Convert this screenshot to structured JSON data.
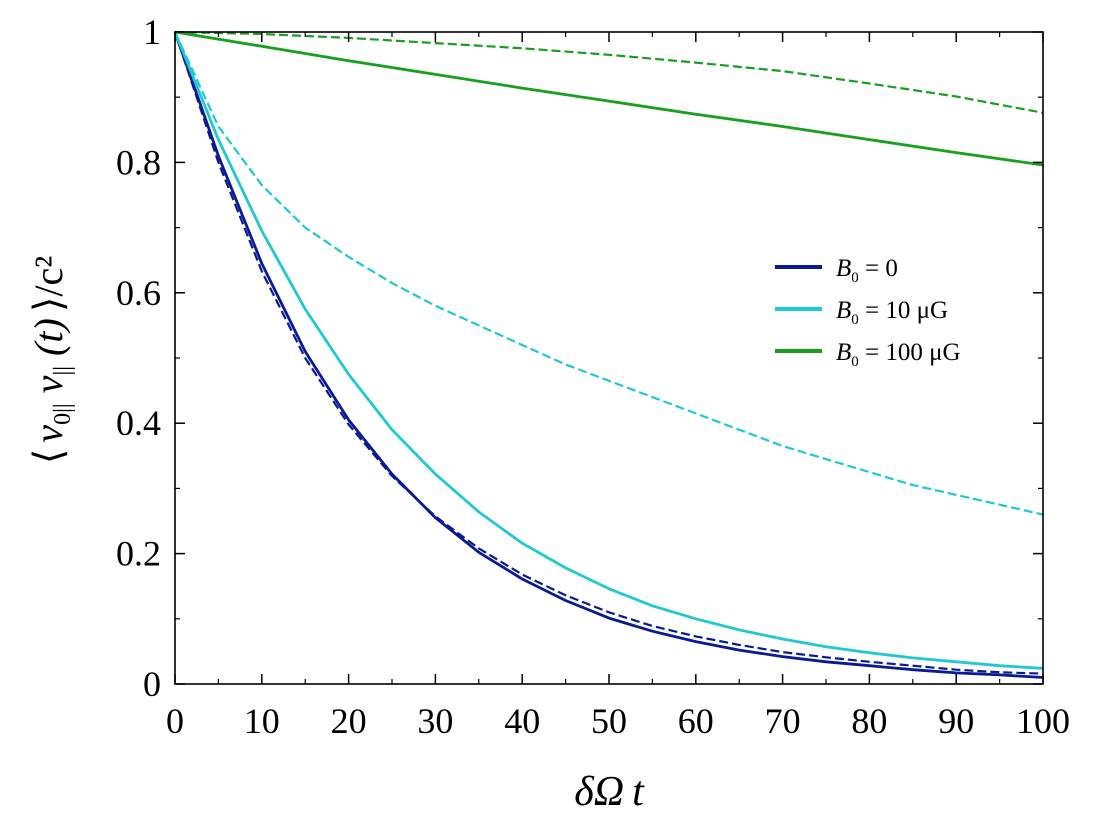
{
  "chart_data": {
    "type": "line",
    "title": "",
    "xlabel": {
      "prefix": "δΩ",
      "var": "t"
    },
    "ylabel": {
      "lb": "⟨",
      "v1": "v",
      "s1": "0||",
      "v2": "v",
      "s2": "||",
      "arg": "(t)",
      "rb": "⟩",
      "tail": "/c²"
    },
    "xlim": [
      0,
      100
    ],
    "ylim": [
      0,
      1
    ],
    "xticks": [
      0,
      10,
      20,
      30,
      40,
      50,
      60,
      70,
      80,
      90,
      100
    ],
    "xtick_labels": [
      "0",
      "10",
      "20",
      "30",
      "40",
      "50",
      "60",
      "70",
      "80",
      "90",
      "100"
    ],
    "yticks": [
      0,
      0.2,
      0.4,
      0.6,
      0.8,
      1
    ],
    "ytick_labels": [
      "0",
      "0.2",
      "0.4",
      "0.6",
      "0.8",
      "1"
    ],
    "grid": false,
    "legend_position": "right",
    "legend": [
      {
        "sym": "B",
        "sub": "0",
        "rest": " = 0",
        "color": "#0a1a96"
      },
      {
        "sym": "B",
        "sub": "0",
        "rest": " = 10 μG",
        "color": "#1fc9d2"
      },
      {
        "sym": "B",
        "sub": "0",
        "rest": " = 100 μG",
        "color": "#16a01c"
      }
    ],
    "series": [
      {
        "key": "b0-solid",
        "group": "B0 = 0",
        "style": "solid",
        "color": "#0a1a96",
        "x": [
          0,
          5,
          10,
          15,
          20,
          25,
          30,
          35,
          40,
          45,
          50,
          55,
          60,
          65,
          70,
          75,
          80,
          85,
          90,
          95,
          100
        ],
        "y": [
          1.0,
          0.81,
          0.645,
          0.51,
          0.405,
          0.322,
          0.255,
          0.202,
          0.161,
          0.128,
          0.101,
          0.081,
          0.065,
          0.052,
          0.042,
          0.034,
          0.028,
          0.022,
          0.017,
          0.014,
          0.01
        ]
      },
      {
        "key": "b0-dashed",
        "group": "B0 = 0",
        "style": "dashed",
        "color": "#0a1a96",
        "x": [
          0,
          5,
          10,
          15,
          20,
          25,
          30,
          35,
          40,
          45,
          50,
          55,
          60,
          65,
          70,
          75,
          80,
          85,
          90,
          95,
          100
        ],
        "y": [
          1.0,
          0.8,
          0.633,
          0.5,
          0.398,
          0.319,
          0.257,
          0.208,
          0.168,
          0.136,
          0.11,
          0.089,
          0.073,
          0.06,
          0.049,
          0.041,
          0.034,
          0.028,
          0.022,
          0.018,
          0.016
        ]
      },
      {
        "key": "b10-solid",
        "group": "B0 = 10 μG",
        "style": "solid",
        "color": "#1fc9d2",
        "x": [
          0,
          5,
          10,
          15,
          20,
          25,
          30,
          35,
          40,
          45,
          50,
          55,
          60,
          65,
          70,
          75,
          80,
          85,
          90,
          95,
          100
        ],
        "y": [
          1.0,
          0.835,
          0.695,
          0.575,
          0.475,
          0.39,
          0.322,
          0.264,
          0.216,
          0.178,
          0.146,
          0.12,
          0.1,
          0.083,
          0.069,
          0.057,
          0.048,
          0.04,
          0.034,
          0.028,
          0.024
        ]
      },
      {
        "key": "b10-dashed",
        "group": "B0 = 10 μG",
        "style": "dashed",
        "color": "#1fc9d2",
        "x": [
          0,
          5,
          10,
          15,
          20,
          25,
          30,
          35,
          40,
          45,
          50,
          55,
          60,
          65,
          70,
          75,
          80,
          85,
          90,
          95,
          100
        ],
        "y": [
          1.0,
          0.855,
          0.765,
          0.7,
          0.655,
          0.615,
          0.58,
          0.55,
          0.52,
          0.49,
          0.465,
          0.44,
          0.415,
          0.39,
          0.365,
          0.345,
          0.325,
          0.305,
          0.29,
          0.275,
          0.26
        ]
      },
      {
        "key": "b100-solid",
        "group": "B0 = 100 μG",
        "style": "solid",
        "color": "#16a01c",
        "x": [
          0,
          10,
          20,
          30,
          40,
          50,
          60,
          70,
          80,
          90,
          100
        ],
        "y": [
          1.0,
          0.978,
          0.956,
          0.935,
          0.914,
          0.894,
          0.874,
          0.855,
          0.835,
          0.815,
          0.796
        ]
      },
      {
        "key": "b100-dashed",
        "group": "B0 = 100 μG",
        "style": "dashed",
        "color": "#16a01c",
        "x": [
          0,
          10,
          20,
          30,
          40,
          50,
          60,
          70,
          80,
          90,
          100
        ],
        "y": [
          1.0,
          0.997,
          0.991,
          0.983,
          0.975,
          0.965,
          0.953,
          0.94,
          0.921,
          0.901,
          0.876
        ]
      }
    ]
  }
}
